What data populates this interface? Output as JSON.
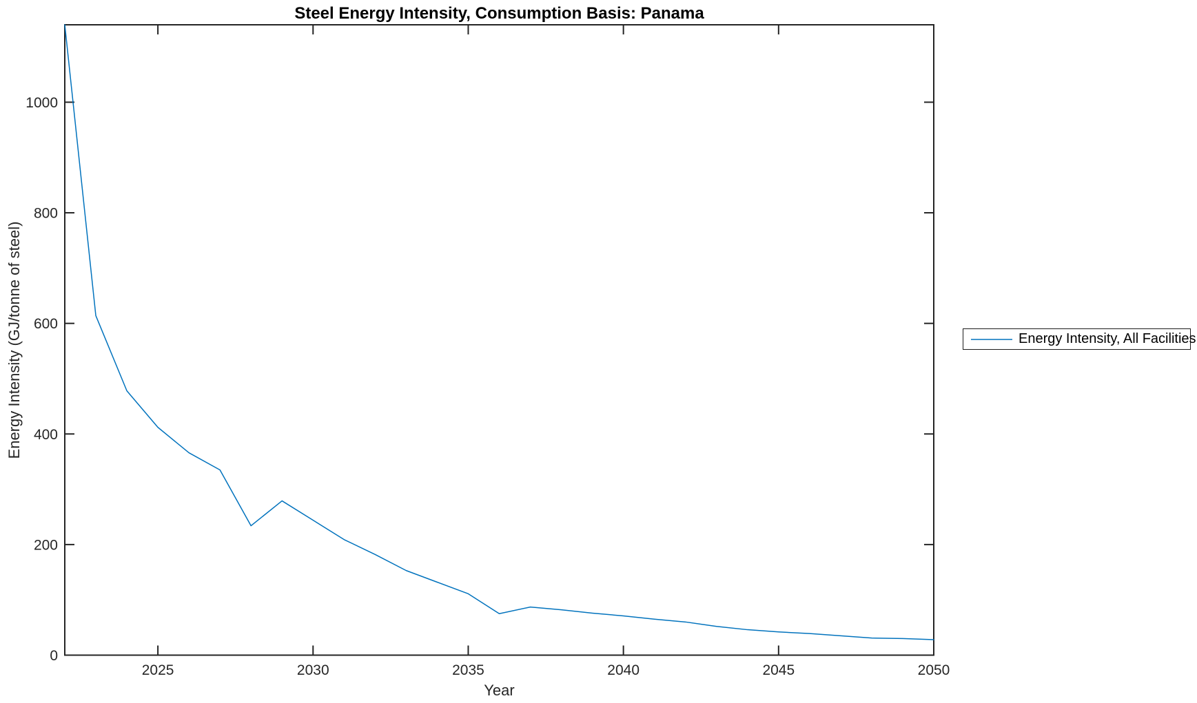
{
  "chart_data": {
    "type": "line",
    "title": "Steel Energy Intensity, Consumption Basis: Panama",
    "xlabel": "Year",
    "ylabel": "Energy Intensity (GJ/tonne of steel)",
    "xlim": [
      2022,
      2050
    ],
    "ylim": [
      0,
      1140
    ],
    "xticks": [
      2025,
      2030,
      2035,
      2040,
      2045,
      2050
    ],
    "yticks": [
      0,
      200,
      400,
      600,
      800,
      1000
    ],
    "grid": false,
    "legend": {
      "position": "right-outside",
      "entries": [
        "Energy Intensity, All Facilities"
      ]
    },
    "colors": {
      "line": "#0072BD",
      "axis": "#242424",
      "text": "#262626",
      "background": "#ffffff"
    },
    "series": [
      {
        "name": "Energy Intensity, All Facilities",
        "x": [
          2022,
          2023,
          2024,
          2025,
          2026,
          2027,
          2028,
          2029,
          2030,
          2031,
          2032,
          2033,
          2034,
          2035,
          2036,
          2037,
          2038,
          2039,
          2040,
          2041,
          2042,
          2043,
          2044,
          2045,
          2046,
          2047,
          2048,
          2049,
          2050
        ],
        "values": [
          1140,
          614,
          478,
          412,
          366,
          335,
          234,
          279,
          244,
          209,
          182,
          153,
          132,
          111,
          75,
          87,
          82,
          76,
          71,
          65,
          60,
          52,
          46,
          42,
          39,
          35,
          31,
          30,
          28
        ]
      }
    ]
  }
}
